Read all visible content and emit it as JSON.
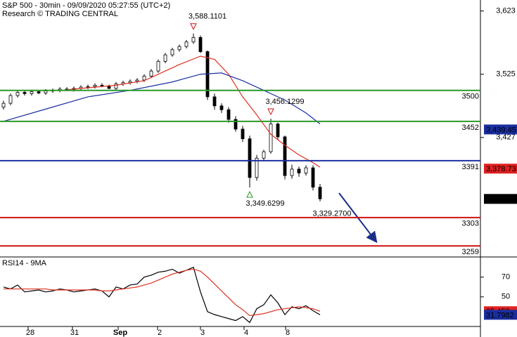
{
  "header": {
    "title": "S&P 500 - 30min - 09/09/2020 05:27:55 (UTC+2)",
    "source": "Research © TRADING CENTRAL"
  },
  "chart_data": [
    {
      "type": "candlestick",
      "xlim": [
        -0.5,
        67.8
      ],
      "xticks": [
        {
          "value": 3.5,
          "label": "28"
        },
        {
          "value": 9.8,
          "label": "31"
        },
        {
          "value": 16.3,
          "label": "Sep"
        },
        {
          "value": 21.9,
          "label": "2"
        },
        {
          "value": 28,
          "label": "3"
        },
        {
          "value": 34.2,
          "label": "4"
        },
        {
          "value": 40.1,
          "label": "8"
        }
      ],
      "ylim": [
        3243,
        3640
      ],
      "yticks": [
        {
          "value": 3623,
          "label": "3,623"
        },
        {
          "value": 3525,
          "label": "3,525"
        },
        {
          "value": 3427,
          "label": "3,427"
        }
      ],
      "open": [
        3474,
        3480,
        3492,
        3497,
        3495,
        3498,
        3496,
        3499,
        3500,
        3502,
        3501,
        3503,
        3505,
        3506,
        3508,
        3507,
        3503,
        3510,
        3512,
        3514,
        3516,
        3522,
        3530,
        3545,
        3555,
        3563,
        3568,
        3575,
        3582,
        3560,
        3490,
        3476,
        3470,
        3455,
        3440,
        3425,
        3365,
        3395,
        3405,
        3448,
        3428,
        3368,
        3378,
        3372,
        3380,
        3350
      ],
      "high": [
        3484,
        3495,
        3500,
        3500,
        3501,
        3500,
        3502,
        3503,
        3505,
        3505,
        3506,
        3508,
        3509,
        3511,
        3511,
        3509,
        3513,
        3515,
        3517,
        3519,
        3525,
        3533,
        3548,
        3558,
        3566,
        3571,
        3578,
        3588.1101,
        3585,
        3562,
        3495,
        3480,
        3474,
        3460,
        3445,
        3430,
        3400,
        3408,
        3456.1299,
        3450,
        3430,
        3385,
        3382,
        3384,
        3384,
        3355
      ],
      "low": [
        3470,
        3477,
        3489,
        3492,
        3492,
        3494,
        3493,
        3496,
        3497,
        3499,
        3498,
        3500,
        3502,
        3503,
        3505,
        3502,
        3500,
        3507,
        3509,
        3511,
        3513,
        3519,
        3527,
        3542,
        3552,
        3560,
        3565,
        3572,
        3558,
        3485,
        3470,
        3465,
        3450,
        3436,
        3420,
        3349.6299,
        3360,
        3390,
        3402,
        3424,
        3362,
        3363,
        3366,
        3368,
        3345,
        3328
      ],
      "close": [
        3480,
        3492,
        3497,
        3495,
        3498,
        3496,
        3499,
        3500,
        3502,
        3501,
        3503,
        3505,
        3506,
        3508,
        3507,
        3503,
        3510,
        3512,
        3514,
        3516,
        3522,
        3530,
        3545,
        3555,
        3563,
        3568,
        3575,
        3582,
        3560,
        3490,
        3476,
        3470,
        3455,
        3440,
        3425,
        3365,
        3395,
        3405,
        3448,
        3428,
        3368,
        3378,
        3372,
        3380,
        3350,
        3332
      ],
      "lines": [
        {
          "color": "#e03020",
          "x": [
            9,
            16,
            20,
            25,
            28,
            30,
            32,
            34,
            36,
            38,
            40,
            42,
            44,
            45
          ],
          "values": [
            3501,
            3508,
            3515,
            3540,
            3553,
            3548,
            3525,
            3490,
            3462,
            3432,
            3415,
            3400,
            3388,
            3381
          ]
        },
        {
          "color": "#1a2ea0",
          "x": [
            0,
            6,
            12,
            18,
            24,
            28,
            31,
            34,
            37,
            40,
            43,
            45
          ],
          "values": [
            3452,
            3471,
            3490,
            3500,
            3513,
            3525,
            3527,
            3515,
            3500,
            3485,
            3465,
            3448
          ]
        }
      ],
      "levels": [
        {
          "value": 3500,
          "color": "#2a9a2a"
        },
        {
          "value": 3452,
          "color": "#2a9a2a"
        },
        {
          "value": 3391,
          "color": "#1a2ea0"
        },
        {
          "value": 3303,
          "color": "#d01010"
        },
        {
          "value": 3259,
          "color": "#d01010"
        }
      ],
      "price_markers": [
        {
          "value": 3439.45,
          "label": "3,439.45",
          "color": "#1a2ea0"
        },
        {
          "value": 3378.73,
          "label": "3,378.73",
          "color": "#e02020"
        },
        {
          "value": 3331.84,
          "label": "3,331.84",
          "color": "#000000"
        }
      ],
      "annotations": [
        {
          "x": 27,
          "value": 3588.1101,
          "label": "3,588.1101",
          "marker": "down",
          "color": "#d01010"
        },
        {
          "x": 38,
          "value": 3456.1299,
          "label": "3,456.1299",
          "marker": "down",
          "color": "#d01010"
        },
        {
          "x": 35,
          "value": 3349.6299,
          "label": "3,349.6299",
          "marker": "up",
          "color": "#2a9a2a"
        },
        {
          "x": 46.7,
          "value": 3329.27,
          "label": "3,329.2700"
        }
      ]
    },
    {
      "type": "line",
      "title": "RSI14 - 9MA",
      "ylim": [
        20,
        89
      ],
      "yticks": [
        70,
        50
      ],
      "series": [
        {
          "color": "#000000",
          "values": [
            60,
            58,
            62,
            55,
            56,
            57,
            55,
            56,
            58,
            57,
            55,
            56,
            57,
            58,
            56,
            50,
            60,
            58,
            62,
            63,
            70,
            72,
            75,
            76,
            78,
            74,
            77,
            80,
            55,
            35,
            32,
            30,
            28,
            26,
            30,
            24,
            38,
            42,
            52,
            44,
            32,
            40,
            38,
            41,
            36,
            31.7982
          ]
        },
        {
          "color": "#e03020",
          "values": [
            58,
            58,
            58,
            58,
            58,
            58,
            58,
            57,
            57,
            57,
            57,
            57,
            57,
            57,
            56,
            56,
            57,
            58,
            59,
            60,
            62,
            64,
            67,
            70,
            73,
            75,
            77,
            78,
            76,
            70,
            63,
            56,
            49,
            42,
            37,
            31,
            32,
            33,
            35,
            37,
            38,
            39,
            40,
            39,
            38,
            35.459
          ]
        }
      ],
      "price_markers": [
        {
          "value": 35.459,
          "color": "#e02020"
        },
        {
          "value": 31.7982,
          "color": "#1a2ea0"
        }
      ]
    }
  ]
}
